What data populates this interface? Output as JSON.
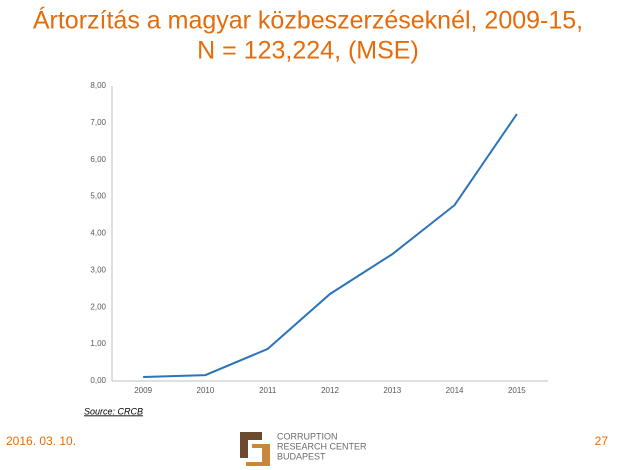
{
  "slide": {
    "title": [
      "Ártorzítás  a magyar közbeszerzéseknél, 2009-15,",
      "N = 123,224,  (MSE)"
    ],
    "source": "Source: CRCB",
    "date": "2016. 03. 10.",
    "page_number": "27",
    "logo_text": [
      "CORRUPTION",
      "RESEARCH CENTER",
      "BUDAPEST"
    ]
  },
  "chart_data": {
    "type": "line",
    "categories": [
      "2009",
      "2010",
      "2011",
      "2012",
      "2013",
      "2014",
      "2015"
    ],
    "series": [
      {
        "color": "#2a74b9",
        "values": [
          0.11,
          0.16,
          0.87,
          2.36,
          3.44,
          4.77,
          7.24
        ]
      }
    ],
    "ylim": [
      0,
      8
    ],
    "yticks": [
      {
        "value": 0,
        "label": "0,00"
      },
      {
        "value": 1,
        "label": "1,00"
      },
      {
        "value": 2,
        "label": "2,00"
      },
      {
        "value": 3,
        "label": "3,00"
      },
      {
        "value": 4,
        "label": "4,00"
      },
      {
        "value": 5,
        "label": "5,00"
      },
      {
        "value": 6,
        "label": "6,00"
      },
      {
        "value": 7,
        "label": "7,00"
      },
      {
        "value": 8,
        "label": "8,00"
      }
    ],
    "grid": false
  }
}
